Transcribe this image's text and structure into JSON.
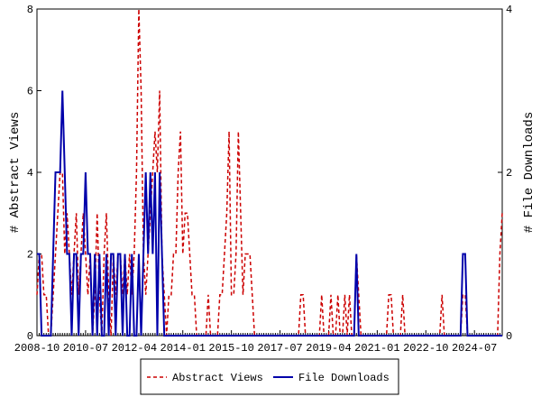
{
  "chart_data": {
    "type": "line",
    "x": [
      "2008-10",
      null,
      null,
      null,
      null,
      null,
      null,
      null,
      null,
      null,
      null,
      null,
      null,
      null,
      null,
      null,
      null,
      null,
      null,
      null,
      null,
      "2010-07",
      null,
      null,
      null,
      null,
      null,
      null,
      null,
      null,
      null,
      null,
      null,
      null,
      null,
      null,
      null,
      null,
      null,
      null,
      null,
      null,
      "2012-04",
      null,
      null,
      null,
      null,
      null,
      null,
      null,
      null,
      null,
      null,
      null,
      null,
      null,
      null,
      null,
      null,
      null,
      null,
      null,
      null,
      "2014-01",
      null,
      null,
      null,
      null,
      null,
      null,
      null,
      null,
      null,
      null,
      null,
      null,
      null,
      null,
      null,
      null,
      null,
      null,
      null,
      null,
      "2015-10",
      null,
      null,
      null,
      null,
      null,
      null,
      null,
      null,
      null,
      null,
      null,
      null,
      null,
      null,
      null,
      null,
      null,
      null,
      null,
      null,
      "2017-07",
      null,
      null,
      null,
      null,
      null,
      null,
      null,
      null,
      null,
      null,
      null,
      null,
      null,
      null,
      null,
      null,
      null,
      null,
      null,
      null,
      "2019-04",
      null,
      null,
      null,
      null,
      null,
      null,
      null,
      null,
      null,
      null,
      null,
      null,
      null,
      null,
      null,
      null,
      null,
      null,
      null,
      null,
      "2021-01",
      null,
      null,
      null,
      null,
      null,
      null,
      null,
      null,
      null,
      null,
      null,
      null,
      null,
      null,
      null,
      null,
      null,
      null,
      null,
      null,
      "2022-10",
      null,
      null,
      null,
      null,
      null,
      null,
      null,
      null,
      null,
      null,
      null,
      null,
      null,
      null,
      null,
      null,
      null,
      null,
      null,
      null,
      "2024-07",
      null,
      null,
      null,
      null,
      null,
      null,
      null,
      null,
      null,
      null,
      null,
      null
    ],
    "series": [
      {
        "name": "Abstract Views",
        "color": "#cc0000",
        "axis": "y",
        "dashed": true,
        "values": [
          1,
          2,
          2,
          1,
          1,
          0,
          0,
          1,
          2,
          3,
          4,
          4,
          2,
          3,
          2,
          1,
          2,
          3,
          1,
          2,
          3,
          2,
          1,
          2,
          0,
          1,
          3,
          1,
          0,
          2,
          3,
          1,
          0,
          2,
          1,
          2,
          2,
          1,
          2,
          1,
          2,
          1,
          2,
          4,
          8,
          6,
          2,
          1,
          2,
          3,
          4,
          5,
          4,
          6,
          2,
          1,
          0,
          1,
          1,
          2,
          2,
          4,
          5,
          2,
          3,
          3,
          2,
          1,
          1,
          0,
          0,
          0,
          0,
          0,
          1,
          0,
          0,
          0,
          0,
          1,
          1,
          2,
          3,
          5,
          1,
          1,
          2,
          5,
          3,
          1,
          2,
          2,
          2,
          1,
          0,
          0,
          0,
          0,
          0,
          0,
          0,
          0,
          0,
          0,
          0,
          0,
          0,
          0,
          0,
          0,
          0,
          0,
          0,
          0,
          1,
          1,
          0,
          0,
          0,
          0,
          0,
          0,
          0,
          1,
          0,
          0,
          0,
          1,
          0,
          0,
          1,
          0,
          0,
          1,
          0,
          1,
          0,
          0,
          2,
          1,
          0,
          0,
          0,
          0,
          0,
          0,
          0,
          0,
          0,
          0,
          0,
          0,
          1,
          1,
          0,
          0,
          0,
          0,
          1,
          0,
          0,
          0,
          0,
          0,
          0,
          0,
          0,
          0,
          0,
          0,
          0,
          0,
          0,
          0,
          0,
          1,
          0,
          0,
          0,
          0,
          0,
          0,
          0,
          0,
          1,
          1,
          0,
          0,
          0,
          0,
          0,
          0,
          0,
          0,
          0,
          0,
          0,
          0,
          0,
          0,
          2,
          3
        ]
      },
      {
        "name": "File Downloads",
        "color": "#0000aa",
        "axis": "y2",
        "dashed": false,
        "values": [
          1,
          1,
          0,
          0,
          0,
          0,
          0,
          1,
          2,
          2,
          2,
          3,
          2,
          1,
          1,
          0,
          1,
          1,
          0,
          1,
          1,
          2,
          1,
          1,
          0,
          1,
          0,
          1,
          0,
          0,
          1,
          0,
          1,
          1,
          0,
          1,
          1,
          0,
          1,
          0,
          0,
          1,
          0,
          0,
          1,
          0,
          1,
          2,
          1,
          2,
          1,
          2,
          0,
          2,
          1,
          0,
          0,
          0,
          0,
          0,
          0,
          0,
          0,
          0,
          0,
          0,
          0,
          0,
          0,
          0,
          0,
          0,
          0,
          0,
          0,
          0,
          0,
          0,
          0,
          0,
          0,
          0,
          0,
          0,
          0,
          0,
          0,
          0,
          0,
          0,
          0,
          0,
          0,
          0,
          0,
          0,
          0,
          0,
          0,
          0,
          0,
          0,
          0,
          0,
          0,
          0,
          0,
          0,
          0,
          0,
          0,
          0,
          0,
          0,
          0,
          0,
          0,
          0,
          0,
          0,
          0,
          0,
          0,
          0,
          0,
          0,
          0,
          0,
          0,
          0,
          0,
          0,
          0,
          0,
          0,
          0,
          0,
          0,
          1,
          0,
          0,
          0,
          0,
          0,
          0,
          0,
          0,
          0,
          0,
          0,
          0,
          0,
          0,
          0,
          0,
          0,
          0,
          0,
          0,
          0,
          0,
          0,
          0,
          0,
          0,
          0,
          0,
          0,
          0,
          0,
          0,
          0,
          0,
          0,
          0,
          0,
          0,
          0,
          0,
          0,
          0,
          0,
          0,
          0,
          1,
          1,
          0,
          0,
          0,
          0,
          0,
          0,
          0,
          0,
          0,
          0,
          0,
          0,
          0,
          0,
          0,
          0
        ]
      }
    ],
    "ylabel": "# Abstract Views",
    "y2label": "# File Downloads",
    "ylim": [
      0,
      8
    ],
    "yticks": [
      0,
      2,
      4,
      6,
      8
    ],
    "y2lim": [
      0,
      4
    ],
    "y2ticks": [
      0,
      2,
      4
    ],
    "legend": "bottom"
  }
}
